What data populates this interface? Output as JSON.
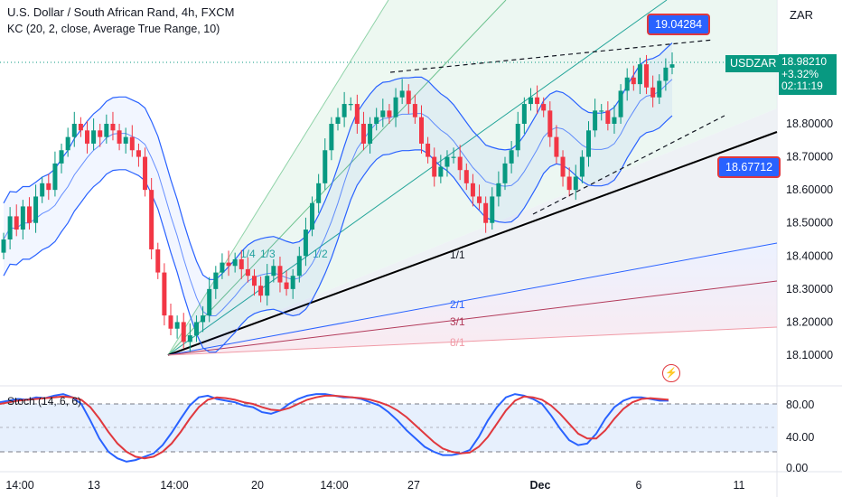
{
  "header": {
    "title": "U.S. Dollar / South African Rand, 4h, FXCM",
    "indicator": "KC (20, 2, close, Average True Range, 10)",
    "currency": "ZAR"
  },
  "callouts": {
    "high": "19.04284",
    "low": "18.67712"
  },
  "price_box": {
    "symbol": "USDZAR",
    "price": "18.98210",
    "change": "+3.32%",
    "countdown": "02:11:19"
  },
  "stoch": {
    "title": "Stoch (14, 6, 6)",
    "levels": [
      "80.00",
      "40.00",
      "0.00"
    ],
    "k_color": "#2962ff",
    "d_color": "#e0383e"
  },
  "fan_labels": [
    "1/4",
    "1/3",
    "1/2",
    "1/1",
    "2/1",
    "3/1",
    "8/1"
  ],
  "colors": {
    "up": "#089981",
    "down": "#f23645",
    "keltner": "#2962ff"
  },
  "chart_data": {
    "type": "candlestick",
    "title": "U.S. Dollar / South African Rand, 4h, FXCM",
    "ylim": [
      18.03,
      19.12
    ],
    "yticks": [
      "18.80000",
      "18.70000",
      "18.60000",
      "18.50000",
      "18.40000",
      "18.30000",
      "18.20000",
      "18.10000"
    ],
    "xticks": [
      "14:00",
      "13",
      "14:00",
      "20",
      "14:00",
      "27",
      "Dec",
      "6",
      "11"
    ],
    "close_series": [
      18.45,
      18.52,
      18.48,
      18.55,
      18.5,
      18.58,
      18.62,
      18.6,
      18.68,
      18.72,
      18.76,
      18.8,
      18.78,
      18.74,
      18.78,
      18.76,
      18.8,
      18.78,
      18.74,
      18.76,
      18.72,
      18.7,
      18.6,
      18.42,
      18.35,
      18.22,
      18.18,
      18.2,
      18.14,
      18.16,
      18.2,
      18.22,
      18.3,
      18.35,
      18.38,
      18.37,
      18.39,
      18.36,
      18.34,
      18.31,
      18.28,
      18.34,
      18.37,
      18.32,
      18.3,
      18.34,
      18.4,
      18.48,
      18.56,
      18.62,
      18.72,
      18.8,
      18.82,
      18.86,
      18.86,
      18.8,
      18.74,
      18.8,
      18.82,
      18.84,
      18.82,
      18.88,
      18.9,
      18.86,
      18.82,
      18.74,
      18.7,
      18.64,
      18.67,
      18.7,
      18.7,
      18.66,
      18.62,
      18.58,
      18.56,
      18.5,
      18.58,
      18.62,
      18.68,
      18.72,
      18.8,
      18.86,
      18.88,
      18.86,
      18.84,
      18.76,
      18.7,
      18.64,
      18.6,
      18.64,
      18.7,
      18.78,
      18.84,
      18.84,
      18.8,
      18.82,
      18.9,
      18.94,
      18.92,
      18.98,
      18.91,
      18.88,
      18.93,
      18.97,
      18.98
    ],
    "series": [
      {
        "name": "USDZAR",
        "last": 18.9821
      },
      {
        "name": "KC upper"
      },
      {
        "name": "KC basis"
      },
      {
        "name": "KC lower"
      }
    ],
    "annotations": [
      "19.04284",
      "18.67712"
    ],
    "subchart": {
      "type": "line",
      "title": "Stoch (14, 6, 6)",
      "ylim": [
        0,
        100
      ],
      "yticks": [
        "80.00",
        "40.00",
        "0.00"
      ],
      "k": [
        82,
        84,
        86,
        85,
        88,
        87,
        90,
        92,
        88,
        80,
        60,
        38,
        22,
        14,
        10,
        12,
        16,
        20,
        30,
        45,
        62,
        78,
        88,
        90,
        86,
        84,
        82,
        78,
        76,
        70,
        68,
        72,
        80,
        86,
        90,
        92,
        92,
        90,
        88,
        88,
        86,
        82,
        78,
        70,
        60,
        48,
        38,
        28,
        22,
        18,
        18,
        20,
        24,
        40,
        60,
        76,
        88,
        92,
        90,
        86,
        80,
        66,
        50,
        36,
        30,
        32,
        44,
        62,
        76,
        84,
        88,
        88,
        86,
        84,
        84
      ],
      "d": [
        80,
        82,
        84,
        85,
        86,
        87,
        88,
        89,
        88,
        85,
        76,
        62,
        46,
        32,
        22,
        16,
        14,
        16,
        22,
        32,
        46,
        62,
        76,
        85,
        88,
        87,
        85,
        82,
        80,
        76,
        73,
        72,
        75,
        80,
        85,
        88,
        90,
        90,
        89,
        88,
        87,
        85,
        82,
        78,
        72,
        64,
        54,
        44,
        34,
        26,
        22,
        20,
        21,
        28,
        40,
        56,
        72,
        84,
        89,
        88,
        85,
        78,
        68,
        56,
        44,
        38,
        38,
        48,
        62,
        74,
        82,
        86,
        87,
        86,
        85
      ]
    }
  }
}
